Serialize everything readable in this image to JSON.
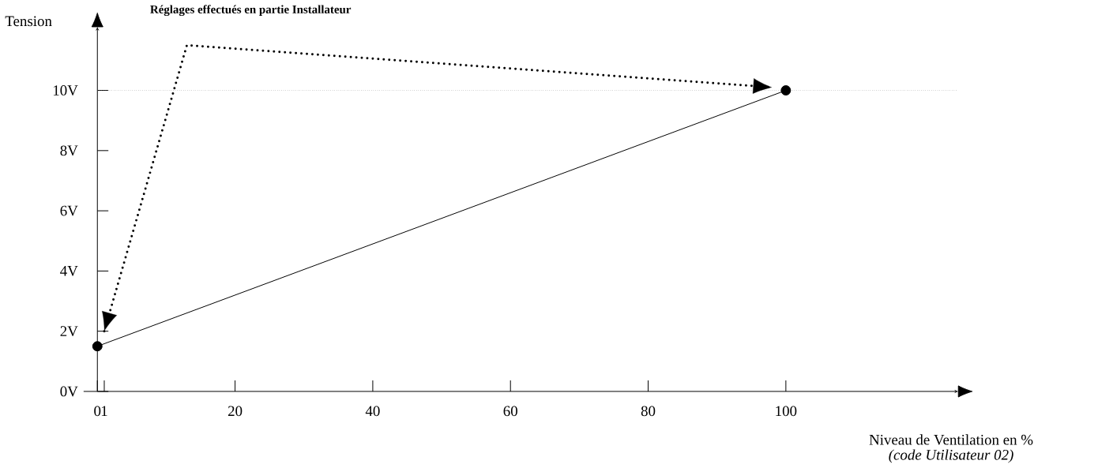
{
  "chart_data": {
    "type": "line",
    "title": "Réglages effectués en partie Installateur",
    "xlabel": "Niveau de Ventilation en %",
    "ylabel": "Tension",
    "annotations": [
      "(code Utilisateur 02)"
    ],
    "series": [
      {
        "x": [
          0,
          100
        ],
        "values": [
          1.5,
          10
        ],
        "color": "#000000",
        "line_style": "solid",
        "marker": "circle"
      },
      {
        "x": [
          1,
          13,
          98
        ],
        "values": [
          2,
          11.5,
          10.1
        ],
        "color": "#000000",
        "line_style": "dotted",
        "marker": "none"
      }
    ],
    "xlim": [
      -2,
      125
    ],
    "ylim": [
      0,
      12.1
    ],
    "xticks": [
      0,
      1,
      20,
      40,
      60,
      80,
      100
    ],
    "yticks": [
      {
        "value": 0,
        "label": "0V"
      },
      {
        "value": 2,
        "label": "2V"
      },
      {
        "value": 4,
        "label": "4V"
      },
      {
        "value": 6,
        "label": "6V"
      },
      {
        "value": 8,
        "label": "8V"
      },
      {
        "value": 10,
        "label": "10V"
      }
    ],
    "ref_lines": [
      {
        "axis": "y",
        "value": 10,
        "color": "#808080",
        "line_style": "dotted"
      }
    ]
  }
}
